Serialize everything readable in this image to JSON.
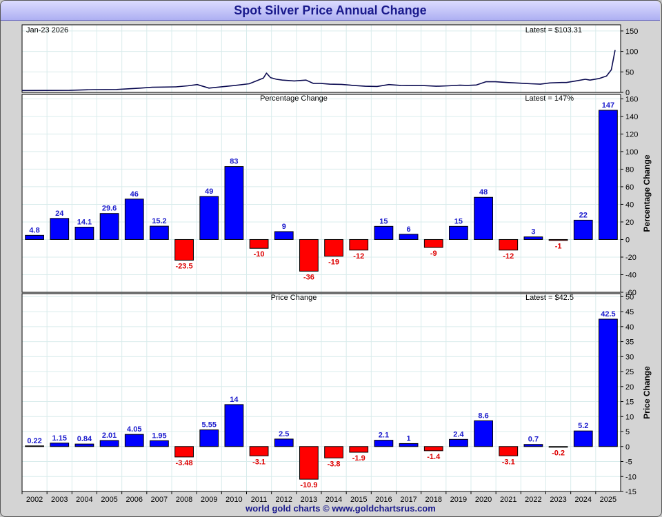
{
  "title": "Spot Silver Price Annual Change",
  "footer": "world gold charts © www.goldchartsrus.com",
  "colors": {
    "positive": "#0000ff",
    "negative": "#ff0000",
    "line": "#0a0a50",
    "title": "#1a1a8c"
  },
  "chart_data": [
    {
      "type": "line",
      "date_label": "Jan-23  2026",
      "title": "",
      "latest_label": "Latest = $103.31",
      "ylim": [
        0,
        165
      ],
      "yticks": [
        0,
        50,
        100,
        150
      ],
      "x": [
        2001.0,
        2002.0,
        2003.0,
        2004.0,
        2005.0,
        2006.0,
        2006.5,
        2007.0,
        2007.5,
        2008.0,
        2008.4,
        2008.9,
        2009.5,
        2010.0,
        2010.6,
        2010.9,
        2011.2,
        2011.33,
        2011.5,
        2011.75,
        2012.0,
        2012.5,
        2013.0,
        2013.3,
        2013.6,
        2014.0,
        2014.5,
        2015.0,
        2015.5,
        2016.0,
        2016.5,
        2017.0,
        2017.5,
        2018.0,
        2018.5,
        2019.0,
        2019.5,
        2019.8,
        2020.2,
        2020.6,
        2021.0,
        2021.5,
        2022.0,
        2022.5,
        2022.9,
        2023.3,
        2023.8,
        2024.0,
        2024.4,
        2024.8,
        2025.0,
        2025.4,
        2025.7,
        2025.9,
        2026.06
      ],
      "y": [
        4.5,
        4.7,
        4.9,
        6.7,
        7.0,
        10.5,
        12.5,
        13.0,
        13.5,
        16.0,
        19.0,
        10.5,
        14.0,
        17.0,
        21.0,
        28.0,
        35.0,
        47.0,
        36.0,
        32.0,
        30.0,
        28.0,
        30.0,
        22.0,
        22.0,
        20.0,
        19.5,
        17.0,
        15.0,
        14.5,
        19.0,
        17.0,
        16.5,
        16.5,
        15.0,
        16.0,
        17.5,
        17.0,
        18.0,
        26.0,
        26.0,
        24.0,
        22.5,
        21.0,
        20.0,
        23.0,
        24.0,
        24.0,
        28.0,
        32.0,
        30.0,
        34.0,
        40.0,
        55.0,
        103.31
      ]
    },
    {
      "type": "bar",
      "title": "Percentage Change",
      "latest_label": "Latest = 147%",
      "ylabel": "Percentage Change",
      "ylim": [
        -60,
        165
      ],
      "yticks": [
        -60,
        -40,
        -20,
        0,
        20,
        40,
        60,
        80,
        100,
        120,
        140,
        160
      ],
      "categories": [
        "2002",
        "2003",
        "2004",
        "2005",
        "2006",
        "2007",
        "2008",
        "2009",
        "2010",
        "2011",
        "2012",
        "2013",
        "2014",
        "2015",
        "2016",
        "2017",
        "2018",
        "2019",
        "2020",
        "2021",
        "2022",
        "2023",
        "2024",
        "2025"
      ],
      "values": [
        4.8,
        24,
        14.1,
        29.6,
        46,
        15.2,
        -23.5,
        49,
        83,
        -10,
        9,
        -36,
        -19,
        -12,
        15,
        6,
        -9,
        15,
        48,
        -12,
        3,
        -1,
        22,
        147
      ],
      "value_labels": [
        "4.8",
        "24",
        "14.1",
        "29.6",
        "46",
        "15.2",
        "-23.5",
        "49",
        "83",
        "-10",
        "9",
        "-36",
        "-19",
        "-12",
        "15",
        "6",
        "-9",
        "15",
        "48",
        "-12",
        "3",
        "-1",
        "22",
        "147"
      ]
    },
    {
      "type": "bar",
      "title": "Price Change",
      "latest_label": "Latest = $42.5",
      "ylabel": "Price Change",
      "ylim": [
        -15,
        51
      ],
      "yticks": [
        -15,
        -10,
        -5,
        0,
        5,
        10,
        15,
        20,
        25,
        30,
        35,
        40,
        45,
        50
      ],
      "categories": [
        "2002",
        "2003",
        "2004",
        "2005",
        "2006",
        "2007",
        "2008",
        "2009",
        "2010",
        "2011",
        "2012",
        "2013",
        "2014",
        "2015",
        "2016",
        "2017",
        "2018",
        "2019",
        "2020",
        "2021",
        "2022",
        "2023",
        "2024",
        "2025"
      ],
      "values": [
        0.22,
        1.15,
        0.84,
        2.01,
        4.05,
        1.95,
        -3.48,
        5.55,
        14,
        -3.1,
        2.5,
        -10.9,
        -3.8,
        -1.9,
        2.1,
        1,
        -1.4,
        2.4,
        8.6,
        -3.1,
        0.7,
        -0.2,
        5.2,
        42.5
      ],
      "value_labels": [
        "0.22",
        "1.15",
        "0.84",
        "2.01",
        "4.05",
        "1.95",
        "-3.48",
        "5.55",
        "14",
        "-3.1",
        "2.5",
        "-10.9",
        "-3.8",
        "-1.9",
        "2.1",
        "1",
        "-1.4",
        "2.4",
        "8.6",
        "-3.1",
        "0.7",
        "-0.2",
        "5.2",
        "42.5"
      ]
    }
  ]
}
